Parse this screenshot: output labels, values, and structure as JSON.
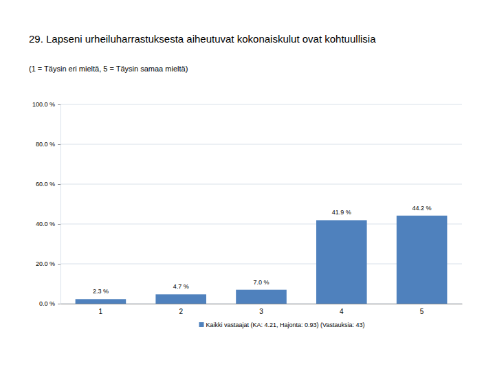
{
  "chart_data": {
    "type": "bar",
    "title": "29. Lapseni urheiluharrastuksesta aiheutuvat kokonaiskulut ovat kohtuullisia",
    "subtitle": "(1 = Täysin eri mieltä, 5 = Täysin samaa mieltä)",
    "categories": [
      "1",
      "2",
      "3",
      "4",
      "5"
    ],
    "series": [
      {
        "name": "Kaikki vastaajat (KA: 4.21, Hajonta: 0.93) (Vastauksia: 43)",
        "color": "#4f81bd",
        "values": [
          2.3,
          4.7,
          7.0,
          41.9,
          44.2
        ],
        "value_labels": [
          "2.3 %",
          "4.7 %",
          "7.0 %",
          "41.9 %",
          "44.2 %"
        ]
      }
    ],
    "ylim": [
      0,
      100
    ],
    "yticks": [
      {
        "value": 0,
        "label": "0.0 %"
      },
      {
        "value": 20,
        "label": "20.0 %"
      },
      {
        "value": 40,
        "label": "40.0 %"
      },
      {
        "value": 60,
        "label": "60.0 %"
      },
      {
        "value": 80,
        "label": "80.0 %"
      },
      {
        "value": 100,
        "label": "100.0 %"
      }
    ],
    "grid": true,
    "data_labels": true,
    "legend": "bottom"
  }
}
